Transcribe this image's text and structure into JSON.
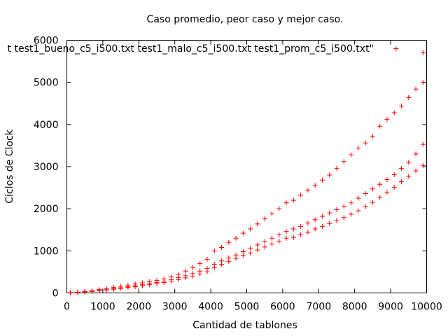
{
  "chart_data": {
    "type": "scatter",
    "title": "Caso promedio, peor caso y mejor caso.",
    "xlabel": "Cantidad de tablones",
    "ylabel": "Ciclos de Clock",
    "xlim": [
      0,
      10000
    ],
    "ylim": [
      0,
      6000
    ],
    "xticks": [
      0,
      1000,
      2000,
      3000,
      4000,
      5000,
      6000,
      7000,
      8000,
      9000,
      10000
    ],
    "yticks": [
      0,
      1000,
      2000,
      3000,
      4000,
      5000,
      6000
    ],
    "grid": false,
    "legend_position": "top",
    "legend_text": "t  test1_bueno_c5_i500.txt test1_malo_c5_i500.txt test1_prom_c5_i500.txt\"",
    "marker_color": "#ff0000",
    "marker": "plus",
    "series": [
      {
        "x": [
          100,
          300,
          500,
          700,
          900,
          1100,
          1300,
          1500,
          1700,
          1900,
          2100,
          2300,
          2500,
          2700,
          2900,
          3100,
          3300,
          3500,
          3700,
          3900,
          4100,
          4300,
          4500,
          4700,
          4900,
          5100,
          5300,
          5500,
          5700,
          5900,
          6100,
          6300,
          6500,
          6700,
          6900,
          7100,
          7300,
          7500,
          7700,
          7900,
          8100,
          8300,
          8500,
          8700,
          8900,
          9100,
          9300,
          9500,
          9700,
          9900
        ],
        "values": [
          5,
          12,
          22,
          34,
          50,
          68,
          88,
          108,
          130,
          150,
          172,
          195,
          220,
          250,
          280,
          320,
          360,
          400,
          450,
          500,
          600,
          680,
          750,
          820,
          890,
          950,
          1020,
          1090,
          1160,
          1230,
          1300,
          1320,
          1380,
          1440,
          1520,
          1580,
          1650,
          1720,
          1790,
          1870,
          1950,
          2050,
          2150,
          2270,
          2390,
          2510,
          2640,
          2770,
          2900,
          3030
        ]
      },
      {
        "x": [
          100,
          300,
          500,
          700,
          900,
          1100,
          1300,
          1500,
          1700,
          1900,
          2100,
          2300,
          2500,
          2700,
          2900,
          3100,
          3300,
          3500,
          3700,
          3900,
          4100,
          4300,
          4500,
          4700,
          4900,
          5100,
          5300,
          5500,
          5700,
          5900,
          6100,
          6300,
          6500,
          6700,
          6900,
          7100,
          7300,
          7500,
          7700,
          7900,
          8100,
          8300,
          8500,
          8700,
          8900,
          9100,
          9300,
          9500,
          9700,
          9900
        ],
        "values": [
          6,
          14,
          26,
          40,
          58,
          78,
          100,
          122,
          146,
          170,
          196,
          222,
          250,
          280,
          320,
          365,
          410,
          460,
          520,
          580,
          680,
          760,
          830,
          900,
          980,
          1060,
          1140,
          1220,
          1300,
          1380,
          1460,
          1520,
          1580,
          1660,
          1740,
          1820,
          1900,
          1980,
          2060,
          2140,
          2250,
          2360,
          2470,
          2580,
          2690,
          2810,
          2960,
          3100,
          3300,
          3530
        ]
      },
      {
        "x": [
          100,
          300,
          500,
          700,
          900,
          1100,
          1300,
          1500,
          1700,
          1900,
          2100,
          2300,
          2500,
          2700,
          2900,
          3100,
          3300,
          3500,
          3700,
          3900,
          4100,
          4300,
          4500,
          4700,
          4900,
          5100,
          5300,
          5500,
          5700,
          5900,
          6100,
          6300,
          6500,
          6700,
          6900,
          7100,
          7300,
          7500,
          7700,
          7900,
          8100,
          8300,
          8500,
          8700,
          8900,
          9100,
          9300,
          9500,
          9700,
          9900
        ],
        "values": [
          8,
          20,
          36,
          56,
          80,
          105,
          132,
          158,
          185,
          212,
          240,
          268,
          300,
          335,
          380,
          440,
          520,
          600,
          700,
          800,
          1000,
          1080,
          1200,
          1300,
          1420,
          1520,
          1640,
          1760,
          1880,
          2000,
          2140,
          2200,
          2320,
          2440,
          2560,
          2680,
          2800,
          2960,
          3120,
          3280,
          3440,
          3560,
          3720,
          3960,
          4120,
          4280,
          4440,
          4640,
          4840,
          5000
        ]
      },
      {
        "x": [
          9150,
          9900
        ],
        "values": [
          5800,
          5700
        ]
      }
    ]
  }
}
